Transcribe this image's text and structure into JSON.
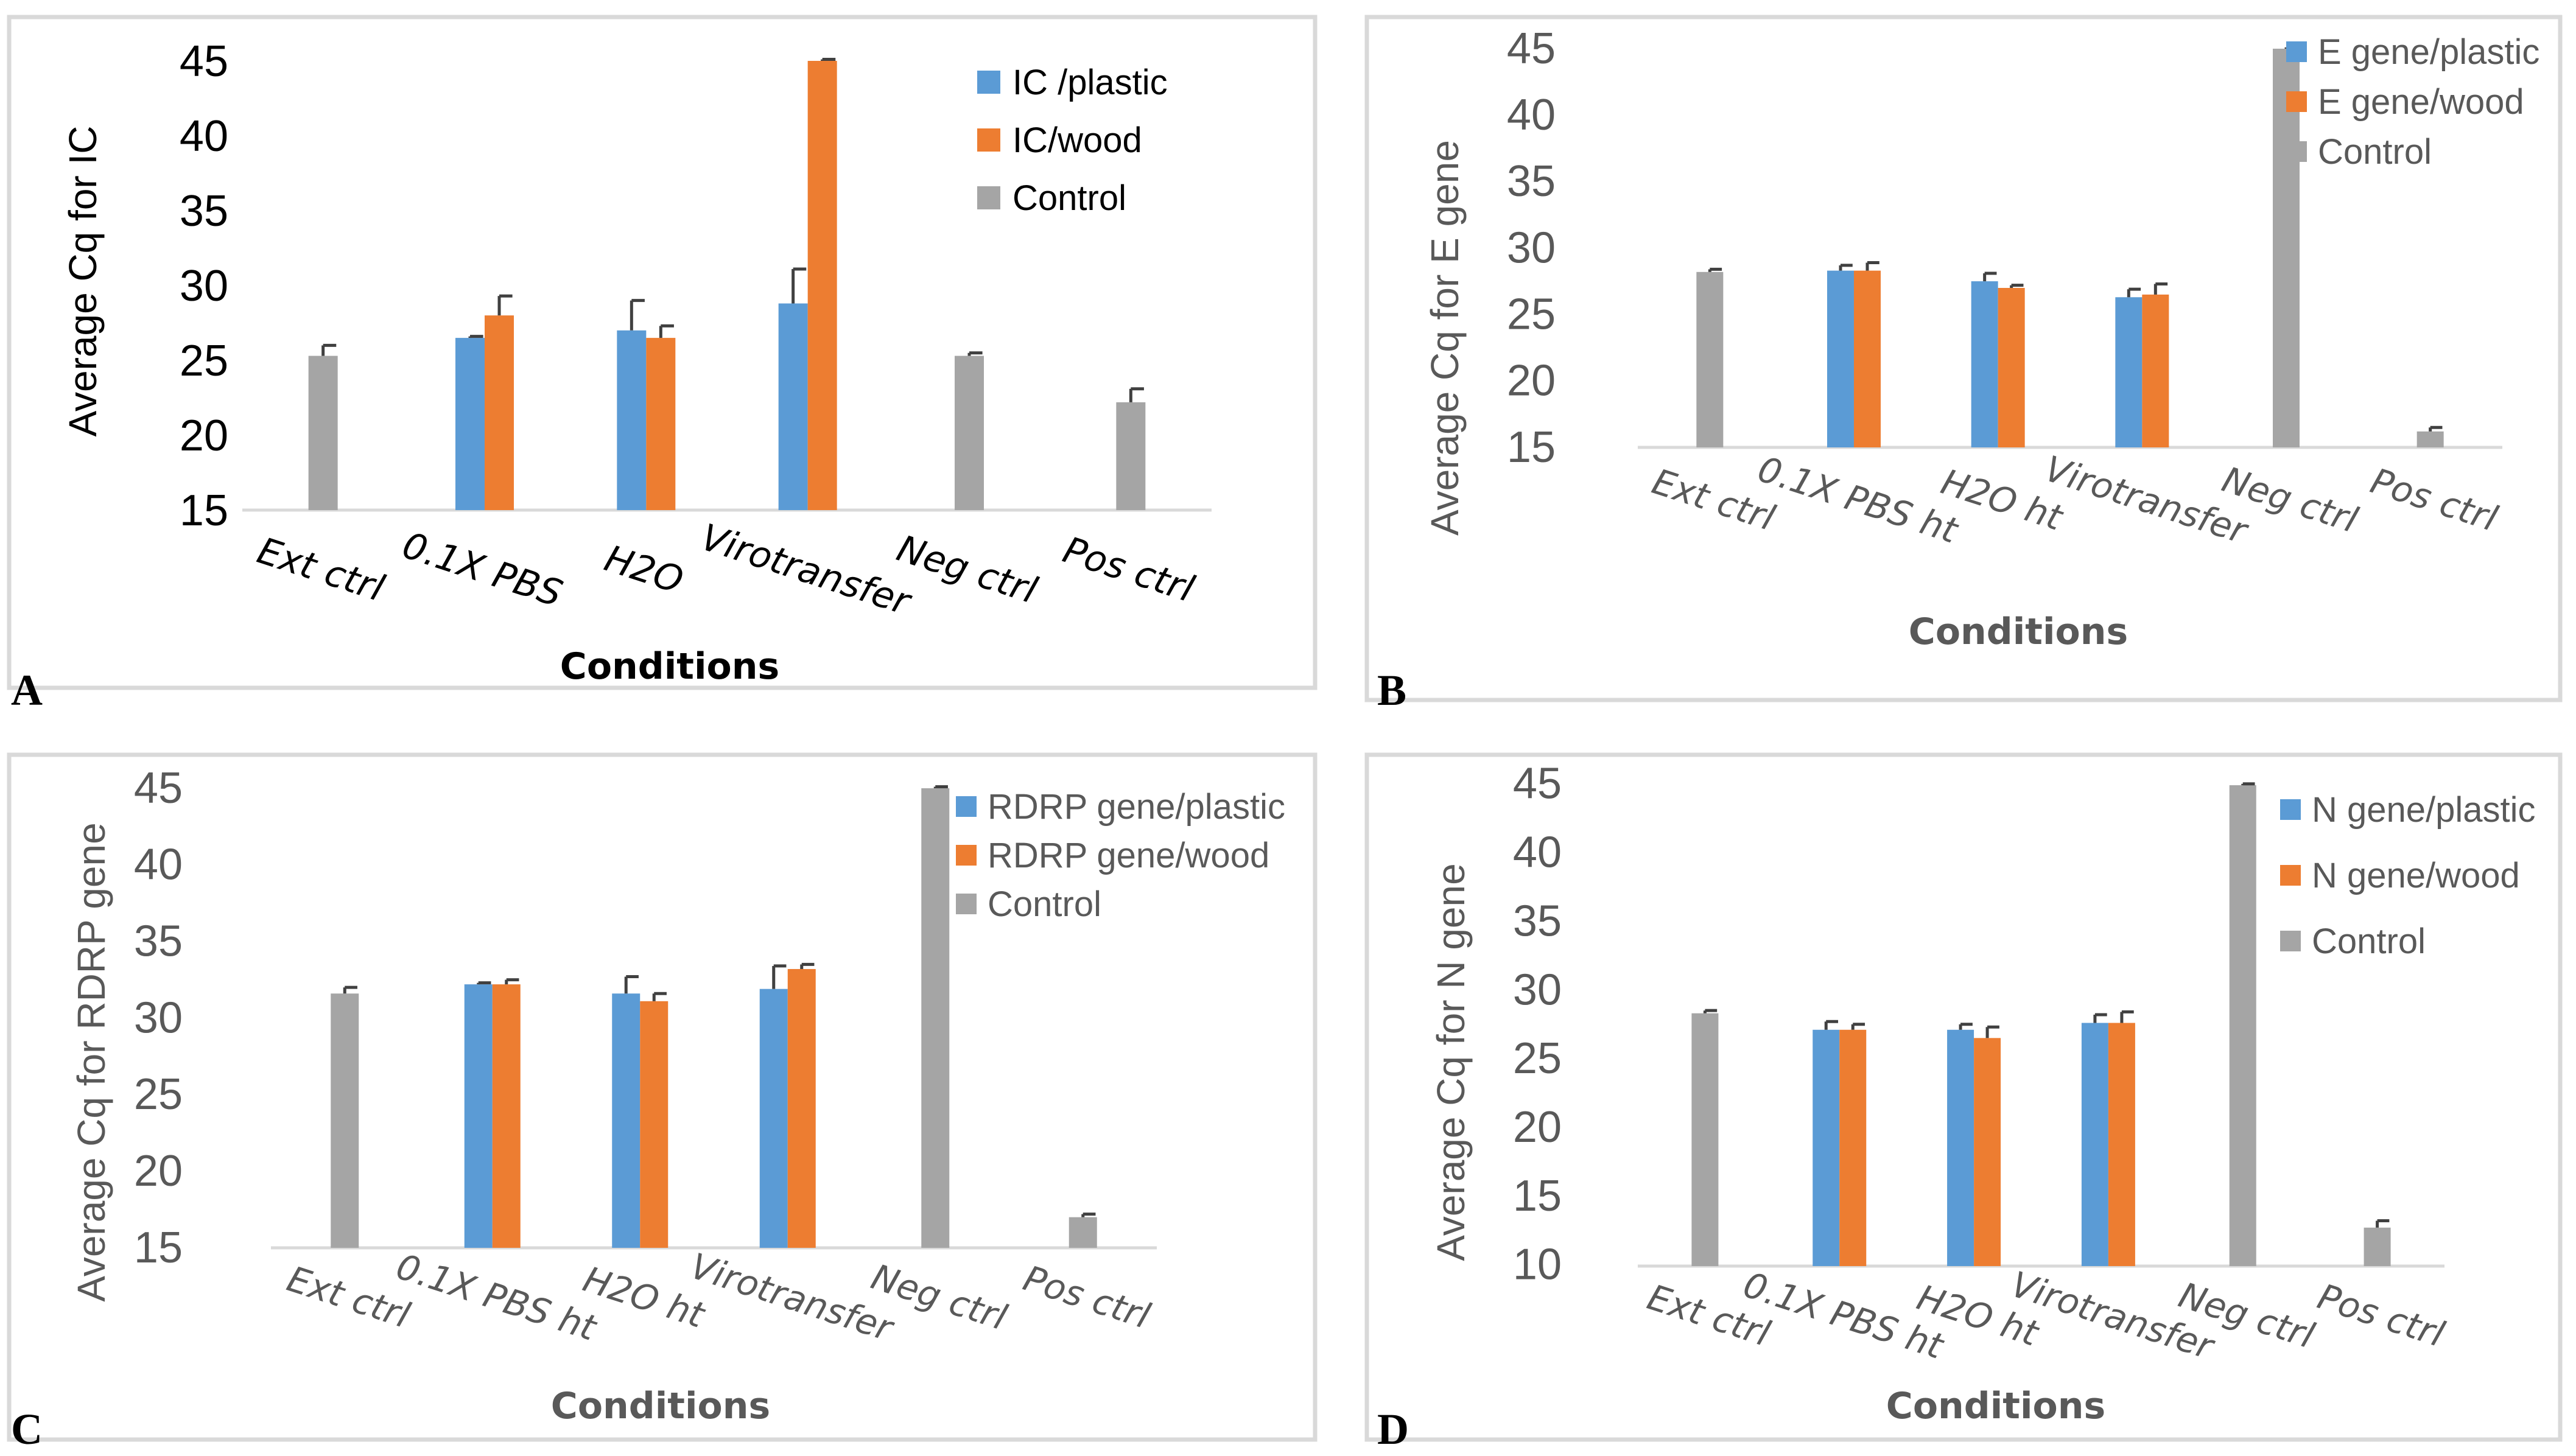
{
  "chart_data": [
    {
      "id": "A",
      "panel_letter": "A",
      "type": "bar",
      "title": "",
      "xlabel": "Conditions",
      "ylabel": "Average Cq for IC",
      "ylim": [
        15,
        45
      ],
      "yticks": [
        15,
        20,
        25,
        30,
        35,
        40,
        45
      ],
      "grid": false,
      "legend_position": "top-right",
      "categories": [
        "Ext ctrl",
        "0.1X PBS",
        "H2O",
        "Virotransfer",
        "Neg ctrl",
        "Pos ctrl"
      ],
      "series": [
        {
          "name": "IC /plastic",
          "color": "#5b9bd5",
          "values": [
            null,
            26.5,
            27.0,
            28.8,
            null,
            null
          ],
          "errors": [
            null,
            0.1,
            2.0,
            2.3,
            null,
            null
          ]
        },
        {
          "name": "IC/wood",
          "color": "#ed7d31",
          "values": [
            null,
            28.0,
            26.5,
            45.0,
            null,
            null
          ],
          "errors": [
            null,
            1.3,
            0.8,
            0.1,
            null,
            null
          ]
        },
        {
          "name": "Control",
          "color": "#a5a5a5",
          "values": [
            25.3,
            null,
            null,
            null,
            25.3,
            22.2
          ],
          "errors": [
            0.7,
            null,
            null,
            null,
            0.2,
            0.9
          ]
        }
      ]
    },
    {
      "id": "B",
      "panel_letter": "B",
      "type": "bar",
      "title": "",
      "xlabel": "Conditions",
      "ylabel": "Average Cq for E gene",
      "ylim": [
        15,
        45
      ],
      "yticks": [
        15,
        20,
        25,
        30,
        35,
        40,
        45
      ],
      "grid": false,
      "legend_position": "top-right",
      "categories": [
        "Ext ctrl",
        "0.1X PBS ht",
        "H2O ht",
        "Virotransfer",
        "Neg ctrl",
        "Pos ctrl"
      ],
      "series": [
        {
          "name": "E gene/plastic",
          "color": "#5b9bd5",
          "values": [
            null,
            28.3,
            27.5,
            26.3,
            null,
            null
          ],
          "errors": [
            null,
            0.4,
            0.6,
            0.6,
            null,
            null
          ]
        },
        {
          "name": "E gene/wood",
          "color": "#ed7d31",
          "values": [
            null,
            28.3,
            27.0,
            26.5,
            null,
            null
          ],
          "errors": [
            null,
            0.6,
            0.2,
            0.8,
            null,
            null
          ]
        },
        {
          "name": "Control",
          "color": "#a5a5a5",
          "values": [
            28.2,
            null,
            null,
            null,
            45.0,
            16.2
          ],
          "errors": [
            0.2,
            null,
            null,
            null,
            0.1,
            0.3
          ]
        }
      ]
    },
    {
      "id": "C",
      "panel_letter": "C",
      "type": "bar",
      "title": "",
      "xlabel": "Conditions",
      "ylabel": "Average Cq  for RDRP gene",
      "ylim": [
        15,
        45
      ],
      "yticks": [
        15,
        20,
        25,
        30,
        35,
        40,
        45
      ],
      "grid": false,
      "legend_position": "top-right",
      "categories": [
        "Ext ctrl",
        "0.1X PBS ht",
        "H2O ht",
        "Virotransfer",
        "Neg ctrl",
        "Pos ctrl"
      ],
      "series": [
        {
          "name": "RDRP gene/plastic",
          "color": "#5b9bd5",
          "values": [
            null,
            32.2,
            31.6,
            31.9,
            null,
            null
          ],
          "errors": [
            null,
            0.1,
            1.1,
            1.5,
            null,
            null
          ]
        },
        {
          "name": "RDRP gene/wood",
          "color": "#ed7d31",
          "values": [
            null,
            32.2,
            31.1,
            33.2,
            null,
            null
          ],
          "errors": [
            null,
            0.3,
            0.5,
            0.3,
            null,
            null
          ]
        },
        {
          "name": "Control",
          "color": "#a5a5a5",
          "values": [
            31.6,
            null,
            null,
            null,
            45.0,
            17.0
          ],
          "errors": [
            0.4,
            null,
            null,
            null,
            0.1,
            0.2
          ]
        }
      ]
    },
    {
      "id": "D",
      "panel_letter": "D",
      "type": "bar",
      "title": "",
      "xlabel": "Conditions",
      "ylabel": "Average Cq for N gene",
      "ylim": [
        10,
        45
      ],
      "yticks": [
        10,
        15,
        20,
        25,
        30,
        35,
        40,
        45
      ],
      "grid": false,
      "legend_position": "top-right",
      "categories": [
        "Ext ctrl",
        "0.1X PBS ht",
        "H2O ht",
        "Virotransfer",
        "Neg ctrl",
        "Pos ctrl"
      ],
      "series": [
        {
          "name": "N gene/plastic",
          "color": "#5b9bd5",
          "values": [
            null,
            27.2,
            27.2,
            27.7,
            null,
            null
          ],
          "errors": [
            null,
            0.6,
            0.4,
            0.6,
            null,
            null
          ]
        },
        {
          "name": "N gene/wood",
          "color": "#ed7d31",
          "values": [
            null,
            27.2,
            26.6,
            27.7,
            null,
            null
          ],
          "errors": [
            null,
            0.4,
            0.8,
            0.8,
            null,
            null
          ]
        },
        {
          "name": "Control",
          "color": "#a5a5a5",
          "values": [
            28.4,
            null,
            null,
            null,
            45.0,
            12.8
          ],
          "errors": [
            0.2,
            null,
            null,
            null,
            0.1,
            0.5
          ]
        }
      ]
    }
  ]
}
